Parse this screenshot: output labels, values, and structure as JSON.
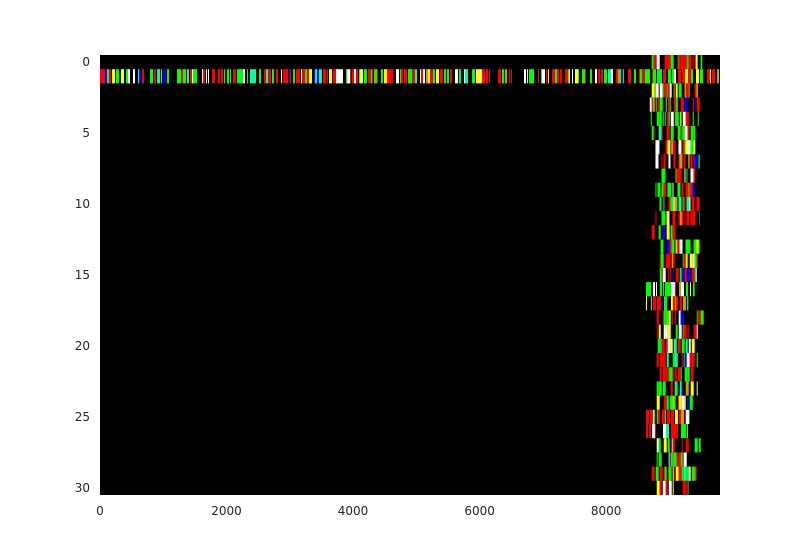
{
  "chart_data": {
    "type": "heatmap",
    "title": "",
    "xlabel": "",
    "ylabel": "",
    "xlim": [
      0,
      9800
    ],
    "ylim": [
      30.5,
      -0.5
    ],
    "x_ticks": [
      0,
      2000,
      4000,
      6000,
      8000
    ],
    "x_tick_labels": [
      "0",
      "2000",
      "4000",
      "6000",
      "8000"
    ],
    "y_ticks": [
      0,
      5,
      10,
      15,
      20,
      25,
      30
    ],
    "y_tick_labels": [
      "0",
      "5",
      "10",
      "15",
      "20",
      "25",
      "30"
    ],
    "background_color": "#000000",
    "colors": [
      "#ff0000",
      "#00ff00",
      "#ffffff",
      "#0000ff",
      "#ffff00",
      "#c8a000",
      "#00ffa0"
    ],
    "grid": false,
    "rows": [
      {
        "row": 0,
        "x_start": 8720,
        "x_end": 9520
      },
      {
        "row": 1,
        "x_start": 0,
        "x_end": 9800
      },
      {
        "row": 2,
        "x_start": 8720,
        "x_end": 9480
      },
      {
        "row": 3,
        "x_start": 8690,
        "x_end": 9480
      },
      {
        "row": 4,
        "x_start": 8690,
        "x_end": 9480
      },
      {
        "row": 5,
        "x_start": 8720,
        "x_end": 9410
      },
      {
        "row": 6,
        "x_start": 8780,
        "x_end": 9410
      },
      {
        "row": 7,
        "x_start": 8780,
        "x_end": 9480
      },
      {
        "row": 8,
        "x_start": 8780,
        "x_end": 9410
      },
      {
        "row": 9,
        "x_start": 8780,
        "x_end": 9410
      },
      {
        "row": 10,
        "x_start": 8780,
        "x_end": 9480
      },
      {
        "row": 11,
        "x_start": 8780,
        "x_end": 9480
      },
      {
        "row": 12,
        "x_start": 8720,
        "x_end": 9100
      },
      {
        "row": 13,
        "x_start": 8860,
        "x_end": 9500
      },
      {
        "row": 14,
        "x_start": 8800,
        "x_end": 9450
      },
      {
        "row": 15,
        "x_start": 8800,
        "x_end": 9450
      },
      {
        "row": 16,
        "x_start": 8630,
        "x_end": 9400
      },
      {
        "row": 17,
        "x_start": 8630,
        "x_end": 9300
      },
      {
        "row": 18,
        "x_start": 8800,
        "x_end": 9550
      },
      {
        "row": 19,
        "x_start": 8800,
        "x_end": 9450
      },
      {
        "row": 20,
        "x_start": 8800,
        "x_end": 9400
      },
      {
        "row": 21,
        "x_start": 8800,
        "x_end": 9450
      },
      {
        "row": 22,
        "x_start": 8800,
        "x_end": 9380
      },
      {
        "row": 23,
        "x_start": 8800,
        "x_end": 9450
      },
      {
        "row": 24,
        "x_start": 8800,
        "x_end": 9430
      },
      {
        "row": 25,
        "x_start": 8630,
        "x_end": 9320
      },
      {
        "row": 26,
        "x_start": 8630,
        "x_end": 9320
      },
      {
        "row": 27,
        "x_start": 8800,
        "x_end": 9520
      },
      {
        "row": 28,
        "x_start": 8800,
        "x_end": 9300
      },
      {
        "row": 29,
        "x_start": 8720,
        "x_end": 9520
      },
      {
        "row": 30,
        "x_start": 8800,
        "x_end": 9300
      }
    ]
  }
}
